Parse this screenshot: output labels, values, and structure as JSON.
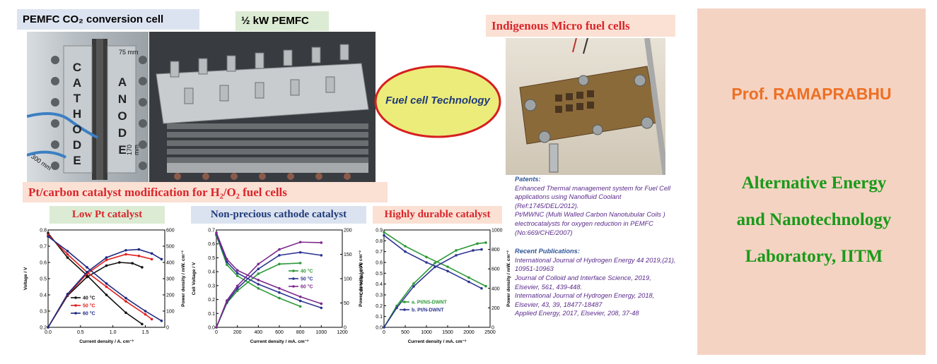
{
  "labels": {
    "pemfc_co2": "PEMFC CO₂ conversion cell",
    "half_kw": "½ kW PEMFC",
    "micro": "Indigenous Micro fuel cells",
    "fuel_tech": "Fuel cell Technology",
    "catalyst_mod": "Pt/carbon catalyst modification for H₂/O₂ fuel cells",
    "low_pt": "Low Pt catalyst",
    "non_precious": "Non-precious cathode catalyst",
    "durable": "Highly durable catalyst"
  },
  "photo_text": {
    "cathode": [
      "C",
      "A",
      "T",
      "H",
      "O",
      "D",
      "E"
    ],
    "anode": [
      "A",
      "N",
      "O",
      "D",
      "E"
    ],
    "dim_75": "75 mm",
    "dim_170": "170 mm",
    "dim_300": "300 mm"
  },
  "sidebar": {
    "prof": "Prof. RAMAPRABHU",
    "lab_lines": [
      "Alternative Energy",
      "and Nanotechnology",
      "Laboratory, IITM"
    ]
  },
  "patents": {
    "heading": "Patents:",
    "items": [
      "Enhanced Thermal management system for Fuel Cell applications using Nanofluid Coolant (Ref:1745/DEL/2012).",
      "Pt/MWNC (Multi Walled Carbon Nanotubular Coils ) electrocatalysts for oxygen reduction in PEMFC (No:669/CHE/2007)"
    ]
  },
  "publications": {
    "heading": "Recent Publications:",
    "items": [
      "International Journal of Hydrogen Energy 44 2019,(21), 10951-10963",
      "Journal of Colloid and Interface Science, 2019, Elsevier, 561, 439-448.",
      "International Journal of Hydrogen Energy, 2018, Elsevier, 43, 39, 18477-18487",
      "Applied Energy, 2017, Elsevier, 208, 37-48"
    ]
  },
  "colors": {
    "orange": "#ee6f23",
    "green": "#1a9a1a",
    "red": "#d9262b",
    "ellipse_fill": "#ecec7a",
    "ellipse_stroke": "#d62020",
    "label_blue_bg": "#dce3f0",
    "label_green_bg": "#dcebd3",
    "label_salmon_bg": "#fbe0d4"
  },
  "chart_data": [
    {
      "type": "line",
      "xlabel": "Current density / A. cm⁻²",
      "ylabel": "Voltage / V",
      "y2label": "Power density / mW. cm⁻²",
      "xlim": [
        0,
        1.8
      ],
      "ylim": [
        0.2,
        0.8
      ],
      "y2lim": [
        0,
        600
      ],
      "xticks": [
        "0.0",
        "0.5",
        "1.0",
        "1.5"
      ],
      "yticks": [
        "0.2",
        "0.3",
        "0.4",
        "0.5",
        "0.6",
        "0.7",
        "0.8"
      ],
      "y2ticks": [
        "0",
        "100",
        "200",
        "300",
        "400",
        "500",
        "600"
      ],
      "legend": [
        "40 °C",
        "50 °C",
        "60 °C"
      ],
      "series": [
        {
          "name": "40 °C",
          "color": "#111111",
          "v": [
            [
              0,
              0.78
            ],
            [
              0.3,
              0.63
            ],
            [
              0.6,
              0.52
            ],
            [
              0.9,
              0.4
            ],
            [
              1.2,
              0.29
            ],
            [
              1.45,
              0.22
            ]
          ],
          "p": [
            [
              0,
              0
            ],
            [
              0.3,
              195
            ],
            [
              0.6,
              310
            ],
            [
              0.9,
              380
            ],
            [
              1.1,
              400
            ],
            [
              1.3,
              395
            ],
            [
              1.45,
              370
            ]
          ]
        },
        {
          "name": "50 °C",
          "color": "#e0201c",
          "v": [
            [
              0,
              0.77
            ],
            [
              0.3,
              0.65
            ],
            [
              0.6,
              0.54
            ],
            [
              0.9,
              0.45
            ],
            [
              1.2,
              0.36
            ],
            [
              1.5,
              0.28
            ],
            [
              1.6,
              0.25
            ]
          ],
          "p": [
            [
              0,
              0
            ],
            [
              0.3,
              200
            ],
            [
              0.6,
              330
            ],
            [
              0.9,
              415
            ],
            [
              1.2,
              450
            ],
            [
              1.4,
              440
            ],
            [
              1.6,
              420
            ]
          ]
        },
        {
          "name": "60 °C",
          "color": "#1e2a80",
          "v": [
            [
              0,
              0.76
            ],
            [
              0.3,
              0.67
            ],
            [
              0.6,
              0.57
            ],
            [
              0.9,
              0.47
            ],
            [
              1.2,
              0.38
            ],
            [
              1.5,
              0.3
            ],
            [
              1.75,
              0.24
            ]
          ],
          "p": [
            [
              0,
              0
            ],
            [
              0.3,
              205
            ],
            [
              0.6,
              340
            ],
            [
              0.9,
              430
            ],
            [
              1.2,
              475
            ],
            [
              1.4,
              480
            ],
            [
              1.6,
              455
            ],
            [
              1.75,
              420
            ]
          ]
        }
      ]
    },
    {
      "type": "line",
      "xlabel": "Current density / mA. cm⁻²",
      "ylabel": "Cell Voltage / V",
      "y2label": "Power density / mW. cm⁻²",
      "xlim": [
        0,
        1200
      ],
      "ylim": [
        0,
        0.7
      ],
      "y2lim": [
        0,
        200
      ],
      "xticks": [
        "0",
        "200",
        "400",
        "600",
        "800",
        "1000",
        "1200"
      ],
      "yticks": [
        "0.0",
        "0.1",
        "0.2",
        "0.3",
        "0.4",
        "0.5",
        "0.6",
        "0.7"
      ],
      "y2ticks": [
        "0",
        "50",
        "100",
        "150",
        "200"
      ],
      "legend": [
        "40 °C",
        "50 °C",
        "60 °C"
      ],
      "series": [
        {
          "name": "40 °C",
          "color": "#2e9a3a",
          "v": [
            [
              0,
              0.66
            ],
            [
              100,
              0.45
            ],
            [
              200,
              0.37
            ],
            [
              400,
              0.28
            ],
            [
              600,
              0.21
            ],
            [
              800,
              0.15
            ]
          ],
          "p": [
            [
              0,
              0
            ],
            [
              100,
              50
            ],
            [
              200,
              75
            ],
            [
              400,
              110
            ],
            [
              600,
              130
            ],
            [
              800,
              132
            ]
          ]
        },
        {
          "name": "50 °C",
          "color": "#2e3592",
          "v": [
            [
              0,
              0.67
            ],
            [
              100,
              0.47
            ],
            [
              200,
              0.39
            ],
            [
              400,
              0.31
            ],
            [
              600,
              0.25
            ],
            [
              800,
              0.19
            ],
            [
              1000,
              0.14
            ]
          ],
          "p": [
            [
              0,
              0
            ],
            [
              100,
              52
            ],
            [
              200,
              80
            ],
            [
              400,
              120
            ],
            [
              600,
              148
            ],
            [
              800,
              154
            ],
            [
              1000,
              148
            ]
          ]
        },
        {
          "name": "60 °C",
          "color": "#7e2a8e",
          "v": [
            [
              0,
              0.68
            ],
            [
              100,
              0.49
            ],
            [
              200,
              0.41
            ],
            [
              400,
              0.34
            ],
            [
              600,
              0.28
            ],
            [
              800,
              0.22
            ],
            [
              1000,
              0.17
            ]
          ],
          "p": [
            [
              0,
              0
            ],
            [
              100,
              55
            ],
            [
              200,
              85
            ],
            [
              400,
              130
            ],
            [
              600,
              160
            ],
            [
              800,
              175
            ],
            [
              1000,
              174
            ]
          ]
        }
      ]
    },
    {
      "type": "line",
      "xlabel": "Current density / mA. cm⁻²",
      "ylabel": "Cell Voltage / V",
      "y2label": "Power density / mW. cm⁻²",
      "xlim": [
        0,
        2500
      ],
      "ylim": [
        0,
        0.9
      ],
      "y2lim": [
        0,
        1000
      ],
      "xticks": [
        "0",
        "500",
        "1000",
        "1500",
        "2000",
        "2500"
      ],
      "yticks": [
        "0.0",
        "0.1",
        "0.2",
        "0.3",
        "0.4",
        "0.5",
        "0.6",
        "0.7",
        "0.8",
        "0.9"
      ],
      "y2ticks": [
        "0",
        "200",
        "400",
        "600",
        "800",
        "1000"
      ],
      "legend": [
        "a. Pt/NS-DWNT",
        "b. Pt/N-DWNT"
      ],
      "series": [
        {
          "name": "a. Pt/NS-DWNT",
          "color": "#2e9a3a",
          "v": [
            [
              0,
              0.88
            ],
            [
              500,
              0.75
            ],
            [
              1000,
              0.65
            ],
            [
              1500,
              0.56
            ],
            [
              2000,
              0.46
            ],
            [
              2400,
              0.38
            ]
          ],
          "p": [
            [
              0,
              0
            ],
            [
              300,
              220
            ],
            [
              700,
              450
            ],
            [
              1200,
              660
            ],
            [
              1700,
              790
            ],
            [
              2200,
              860
            ],
            [
              2400,
              870
            ]
          ]
        },
        {
          "name": "b. Pt/N-DWNT",
          "color": "#2e3592",
          "v": [
            [
              0,
              0.85
            ],
            [
              500,
              0.7
            ],
            [
              1000,
              0.6
            ],
            [
              1500,
              0.52
            ],
            [
              2000,
              0.42
            ],
            [
              2300,
              0.36
            ]
          ],
          "p": [
            [
              0,
              0
            ],
            [
              300,
              200
            ],
            [
              700,
              420
            ],
            [
              1200,
              620
            ],
            [
              1700,
              740
            ],
            [
              2100,
              790
            ],
            [
              2300,
              800
            ]
          ]
        }
      ]
    }
  ]
}
